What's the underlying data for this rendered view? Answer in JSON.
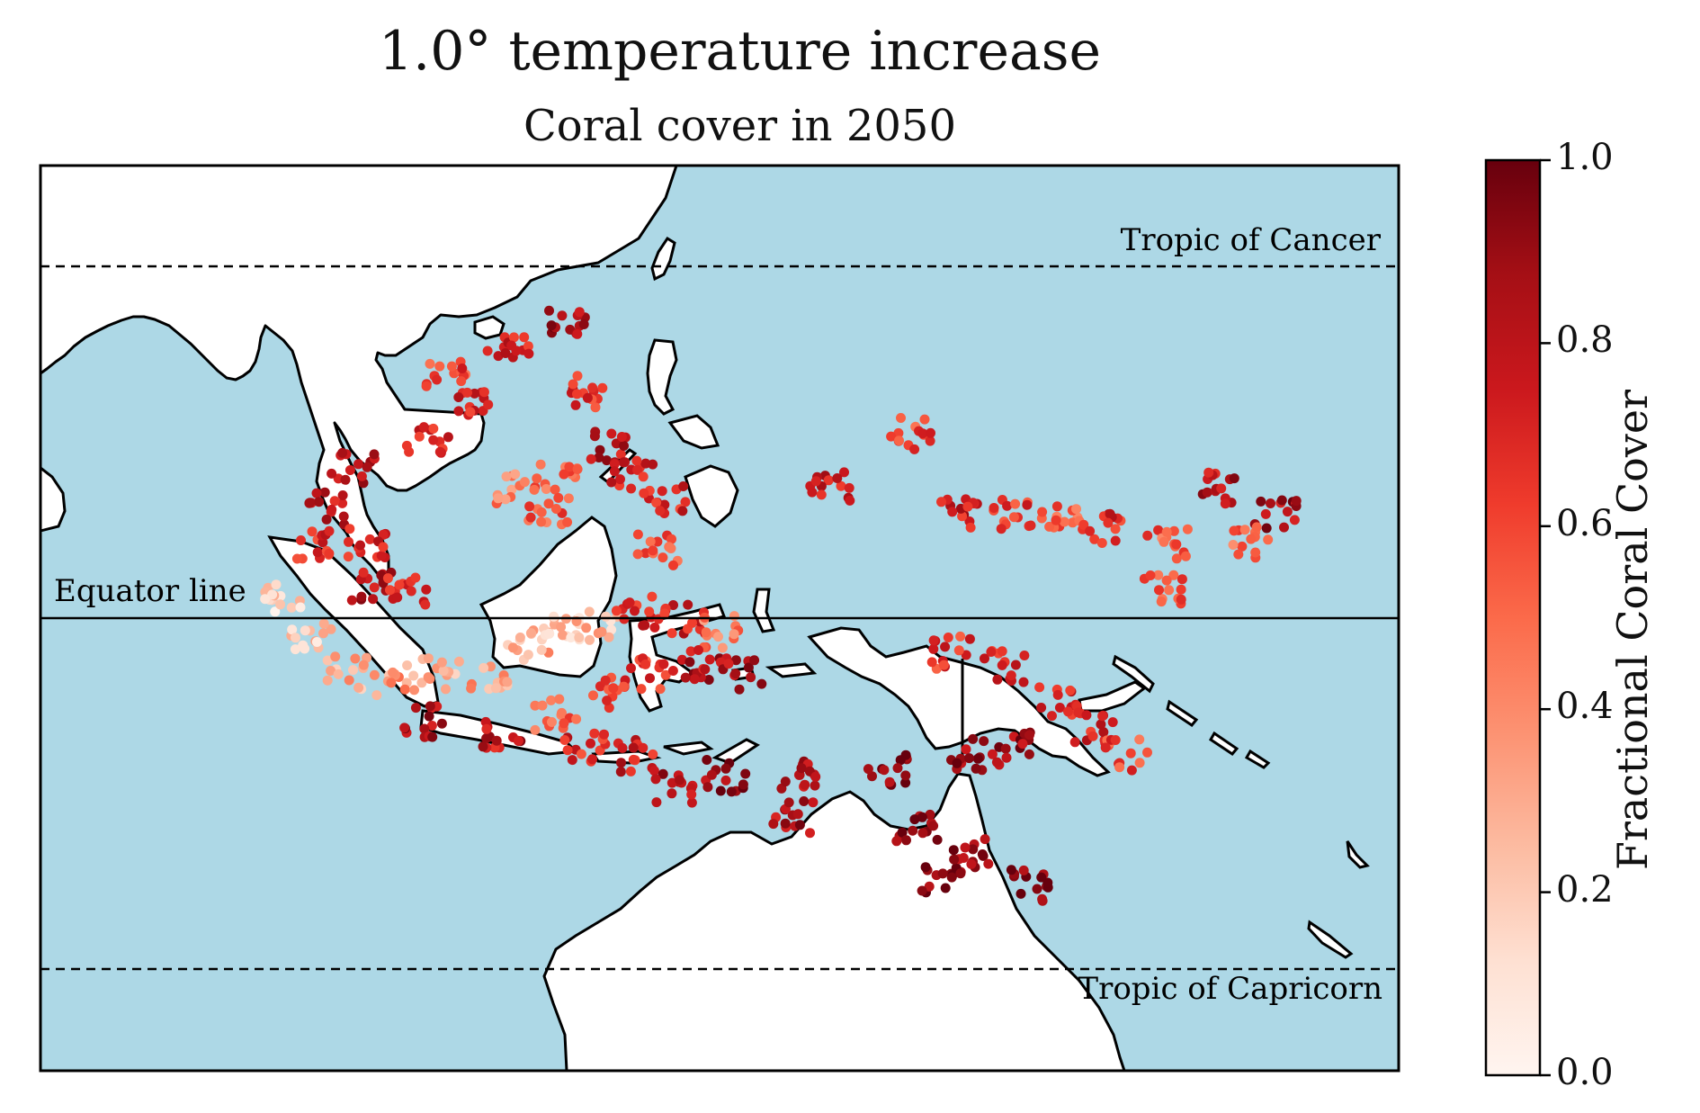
{
  "title": "1.0° temperature increase",
  "subtitle": "Coral cover in 2050",
  "map": {
    "lon_range": [
      80,
      180
    ],
    "lat_range": [
      -33,
      33
    ],
    "ocean_color": "#add8e6",
    "land_color": "#ffffff",
    "lines": [
      {
        "name": "Tropic of Cancer",
        "label": "Tropic of Cancer",
        "lat": 23.44,
        "style": "dashed"
      },
      {
        "name": "Equator",
        "label": "Equator line",
        "lat": 0,
        "style": "solid"
      },
      {
        "name": "Tropic of Capricorn",
        "label": "Tropic of Capricorn",
        "lat": -23.44,
        "style": "dashed"
      }
    ]
  },
  "colorbar": {
    "label": "Fractional Coral Cover",
    "colormap": "Reds",
    "min": 0.0,
    "max": 1.0,
    "ticks": [
      "0.0",
      "0.2",
      "0.4",
      "0.6",
      "0.8",
      "1.0"
    ]
  },
  "chart_data": {
    "type": "scatter",
    "title": "1.0° temperature increase",
    "subtitle": "Coral cover in 2050",
    "xlabel": "",
    "ylabel": "",
    "value_label": "Fractional Coral Cover",
    "clusters": [
      {
        "lon": 118.5,
        "lat": 21.5,
        "value": 0.85
      },
      {
        "lon": 114.5,
        "lat": 20.0,
        "value": 0.75
      },
      {
        "lon": 110.0,
        "lat": 17.5,
        "value": 0.6
      },
      {
        "lon": 112.0,
        "lat": 16.0,
        "value": 0.7
      },
      {
        "lon": 120.0,
        "lat": 16.5,
        "value": 0.65
      },
      {
        "lon": 121.5,
        "lat": 12.5,
        "value": 0.8
      },
      {
        "lon": 123.5,
        "lat": 10.5,
        "value": 0.75
      },
      {
        "lon": 118.0,
        "lat": 10.5,
        "value": 0.5
      },
      {
        "lon": 115.0,
        "lat": 9.5,
        "value": 0.45
      },
      {
        "lon": 117.5,
        "lat": 8.0,
        "value": 0.55
      },
      {
        "lon": 126.0,
        "lat": 8.5,
        "value": 0.7
      },
      {
        "lon": 125.5,
        "lat": 5.0,
        "value": 0.6
      },
      {
        "lon": 108.5,
        "lat": 13.0,
        "value": 0.7
      },
      {
        "lon": 103.0,
        "lat": 11.0,
        "value": 0.8
      },
      {
        "lon": 101.0,
        "lat": 8.0,
        "value": 0.75
      },
      {
        "lon": 104.0,
        "lat": 5.5,
        "value": 0.7
      },
      {
        "lon": 104.5,
        "lat": 2.5,
        "value": 0.8
      },
      {
        "lon": 107.0,
        "lat": 2.0,
        "value": 0.75
      },
      {
        "lon": 100.5,
        "lat": 5.5,
        "value": 0.7
      },
      {
        "lon": 98.0,
        "lat": 1.5,
        "value": 0.15
      },
      {
        "lon": 100.0,
        "lat": -1.5,
        "value": 0.2
      },
      {
        "lon": 102.5,
        "lat": -4.0,
        "value": 0.3
      },
      {
        "lon": 106.0,
        "lat": -4.5,
        "value": 0.35
      },
      {
        "lon": 109.5,
        "lat": -4.0,
        "value": 0.3
      },
      {
        "lon": 113.0,
        "lat": -4.5,
        "value": 0.35
      },
      {
        "lon": 116.0,
        "lat": -2.0,
        "value": 0.3
      },
      {
        "lon": 118.5,
        "lat": -1.0,
        "value": 0.2
      },
      {
        "lon": 121.0,
        "lat": -0.5,
        "value": 0.25
      },
      {
        "lon": 124.0,
        "lat": 0.5,
        "value": 0.7
      },
      {
        "lon": 127.5,
        "lat": 0.0,
        "value": 0.75
      },
      {
        "lon": 130.0,
        "lat": -1.0,
        "value": 0.45
      },
      {
        "lon": 128.5,
        "lat": -3.5,
        "value": 0.8
      },
      {
        "lon": 131.5,
        "lat": -4.0,
        "value": 0.85
      },
      {
        "lon": 125.0,
        "lat": -4.0,
        "value": 0.65
      },
      {
        "lon": 122.0,
        "lat": -5.5,
        "value": 0.6
      },
      {
        "lon": 118.0,
        "lat": -7.0,
        "value": 0.5
      },
      {
        "lon": 114.0,
        "lat": -8.5,
        "value": 0.8
      },
      {
        "lon": 108.0,
        "lat": -7.5,
        "value": 0.85
      },
      {
        "lon": 120.0,
        "lat": -9.5,
        "value": 0.7
      },
      {
        "lon": 124.0,
        "lat": -10.0,
        "value": 0.75
      },
      {
        "lon": 126.5,
        "lat": -12.5,
        "value": 0.85
      },
      {
        "lon": 130.5,
        "lat": -11.5,
        "value": 0.9
      },
      {
        "lon": 135.5,
        "lat": -14.5,
        "value": 0.85
      },
      {
        "lon": 136.0,
        "lat": -11.5,
        "value": 0.8
      },
      {
        "lon": 142.5,
        "lat": -11.0,
        "value": 0.92
      },
      {
        "lon": 144.5,
        "lat": -15.5,
        "value": 0.95
      },
      {
        "lon": 146.5,
        "lat": -19.0,
        "value": 0.95
      },
      {
        "lon": 148.5,
        "lat": -17.0,
        "value": 0.9
      },
      {
        "lon": 153.0,
        "lat": -19.5,
        "value": 0.95
      },
      {
        "lon": 148.5,
        "lat": -10.0,
        "value": 0.9
      },
      {
        "lon": 152.0,
        "lat": -9.5,
        "value": 0.85
      },
      {
        "lon": 147.0,
        "lat": -2.5,
        "value": 0.65
      },
      {
        "lon": 151.0,
        "lat": -3.5,
        "value": 0.7
      },
      {
        "lon": 155.0,
        "lat": -6.0,
        "value": 0.75
      },
      {
        "lon": 157.5,
        "lat": -8.0,
        "value": 0.7
      },
      {
        "lon": 160.0,
        "lat": -10.0,
        "value": 0.6
      },
      {
        "lon": 138.0,
        "lat": 9.5,
        "value": 0.75
      },
      {
        "lon": 144.0,
        "lat": 13.5,
        "value": 0.6
      },
      {
        "lon": 147.5,
        "lat": 7.5,
        "value": 0.75
      },
      {
        "lon": 151.5,
        "lat": 7.5,
        "value": 0.65
      },
      {
        "lon": 155.0,
        "lat": 7.0,
        "value": 0.55
      },
      {
        "lon": 158.0,
        "lat": 6.5,
        "value": 0.7
      },
      {
        "lon": 163.0,
        "lat": 5.5,
        "value": 0.55
      },
      {
        "lon": 167.0,
        "lat": 9.5,
        "value": 0.8
      },
      {
        "lon": 171.0,
        "lat": 7.5,
        "value": 0.85
      },
      {
        "lon": 162.5,
        "lat": 2.0,
        "value": 0.6
      },
      {
        "lon": 169.0,
        "lat": 5.5,
        "value": 0.5
      }
    ]
  }
}
